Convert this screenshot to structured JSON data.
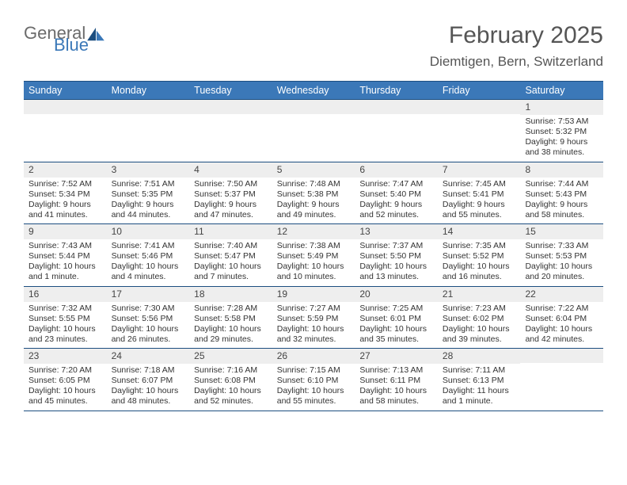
{
  "logo": {
    "part1": "General",
    "part2": "Blue",
    "color1": "#6b6b6b",
    "color2": "#3b78b8"
  },
  "title": "February 2025",
  "location": "Diemtigen, Bern, Switzerland",
  "colors": {
    "header_bg": "#3b78b8",
    "header_border": "#1c4e80",
    "row_border": "#1c4e80",
    "daynum_bg": "#eeeeee",
    "text": "#333333"
  },
  "day_names": [
    "Sunday",
    "Monday",
    "Tuesday",
    "Wednesday",
    "Thursday",
    "Friday",
    "Saturday"
  ],
  "weeks": [
    [
      {
        "n": "",
        "sr": "",
        "ss": "",
        "dl": ""
      },
      {
        "n": "",
        "sr": "",
        "ss": "",
        "dl": ""
      },
      {
        "n": "",
        "sr": "",
        "ss": "",
        "dl": ""
      },
      {
        "n": "",
        "sr": "",
        "ss": "",
        "dl": ""
      },
      {
        "n": "",
        "sr": "",
        "ss": "",
        "dl": ""
      },
      {
        "n": "",
        "sr": "",
        "ss": "",
        "dl": ""
      },
      {
        "n": "1",
        "sr": "Sunrise: 7:53 AM",
        "ss": "Sunset: 5:32 PM",
        "dl": "Daylight: 9 hours and 38 minutes."
      }
    ],
    [
      {
        "n": "2",
        "sr": "Sunrise: 7:52 AM",
        "ss": "Sunset: 5:34 PM",
        "dl": "Daylight: 9 hours and 41 minutes."
      },
      {
        "n": "3",
        "sr": "Sunrise: 7:51 AM",
        "ss": "Sunset: 5:35 PM",
        "dl": "Daylight: 9 hours and 44 minutes."
      },
      {
        "n": "4",
        "sr": "Sunrise: 7:50 AM",
        "ss": "Sunset: 5:37 PM",
        "dl": "Daylight: 9 hours and 47 minutes."
      },
      {
        "n": "5",
        "sr": "Sunrise: 7:48 AM",
        "ss": "Sunset: 5:38 PM",
        "dl": "Daylight: 9 hours and 49 minutes."
      },
      {
        "n": "6",
        "sr": "Sunrise: 7:47 AM",
        "ss": "Sunset: 5:40 PM",
        "dl": "Daylight: 9 hours and 52 minutes."
      },
      {
        "n": "7",
        "sr": "Sunrise: 7:45 AM",
        "ss": "Sunset: 5:41 PM",
        "dl": "Daylight: 9 hours and 55 minutes."
      },
      {
        "n": "8",
        "sr": "Sunrise: 7:44 AM",
        "ss": "Sunset: 5:43 PM",
        "dl": "Daylight: 9 hours and 58 minutes."
      }
    ],
    [
      {
        "n": "9",
        "sr": "Sunrise: 7:43 AM",
        "ss": "Sunset: 5:44 PM",
        "dl": "Daylight: 10 hours and 1 minute."
      },
      {
        "n": "10",
        "sr": "Sunrise: 7:41 AM",
        "ss": "Sunset: 5:46 PM",
        "dl": "Daylight: 10 hours and 4 minutes."
      },
      {
        "n": "11",
        "sr": "Sunrise: 7:40 AM",
        "ss": "Sunset: 5:47 PM",
        "dl": "Daylight: 10 hours and 7 minutes."
      },
      {
        "n": "12",
        "sr": "Sunrise: 7:38 AM",
        "ss": "Sunset: 5:49 PM",
        "dl": "Daylight: 10 hours and 10 minutes."
      },
      {
        "n": "13",
        "sr": "Sunrise: 7:37 AM",
        "ss": "Sunset: 5:50 PM",
        "dl": "Daylight: 10 hours and 13 minutes."
      },
      {
        "n": "14",
        "sr": "Sunrise: 7:35 AM",
        "ss": "Sunset: 5:52 PM",
        "dl": "Daylight: 10 hours and 16 minutes."
      },
      {
        "n": "15",
        "sr": "Sunrise: 7:33 AM",
        "ss": "Sunset: 5:53 PM",
        "dl": "Daylight: 10 hours and 20 minutes."
      }
    ],
    [
      {
        "n": "16",
        "sr": "Sunrise: 7:32 AM",
        "ss": "Sunset: 5:55 PM",
        "dl": "Daylight: 10 hours and 23 minutes."
      },
      {
        "n": "17",
        "sr": "Sunrise: 7:30 AM",
        "ss": "Sunset: 5:56 PM",
        "dl": "Daylight: 10 hours and 26 minutes."
      },
      {
        "n": "18",
        "sr": "Sunrise: 7:28 AM",
        "ss": "Sunset: 5:58 PM",
        "dl": "Daylight: 10 hours and 29 minutes."
      },
      {
        "n": "19",
        "sr": "Sunrise: 7:27 AM",
        "ss": "Sunset: 5:59 PM",
        "dl": "Daylight: 10 hours and 32 minutes."
      },
      {
        "n": "20",
        "sr": "Sunrise: 7:25 AM",
        "ss": "Sunset: 6:01 PM",
        "dl": "Daylight: 10 hours and 35 minutes."
      },
      {
        "n": "21",
        "sr": "Sunrise: 7:23 AM",
        "ss": "Sunset: 6:02 PM",
        "dl": "Daylight: 10 hours and 39 minutes."
      },
      {
        "n": "22",
        "sr": "Sunrise: 7:22 AM",
        "ss": "Sunset: 6:04 PM",
        "dl": "Daylight: 10 hours and 42 minutes."
      }
    ],
    [
      {
        "n": "23",
        "sr": "Sunrise: 7:20 AM",
        "ss": "Sunset: 6:05 PM",
        "dl": "Daylight: 10 hours and 45 minutes."
      },
      {
        "n": "24",
        "sr": "Sunrise: 7:18 AM",
        "ss": "Sunset: 6:07 PM",
        "dl": "Daylight: 10 hours and 48 minutes."
      },
      {
        "n": "25",
        "sr": "Sunrise: 7:16 AM",
        "ss": "Sunset: 6:08 PM",
        "dl": "Daylight: 10 hours and 52 minutes."
      },
      {
        "n": "26",
        "sr": "Sunrise: 7:15 AM",
        "ss": "Sunset: 6:10 PM",
        "dl": "Daylight: 10 hours and 55 minutes."
      },
      {
        "n": "27",
        "sr": "Sunrise: 7:13 AM",
        "ss": "Sunset: 6:11 PM",
        "dl": "Daylight: 10 hours and 58 minutes."
      },
      {
        "n": "28",
        "sr": "Sunrise: 7:11 AM",
        "ss": "Sunset: 6:13 PM",
        "dl": "Daylight: 11 hours and 1 minute."
      },
      {
        "n": "",
        "sr": "",
        "ss": "",
        "dl": ""
      }
    ]
  ]
}
